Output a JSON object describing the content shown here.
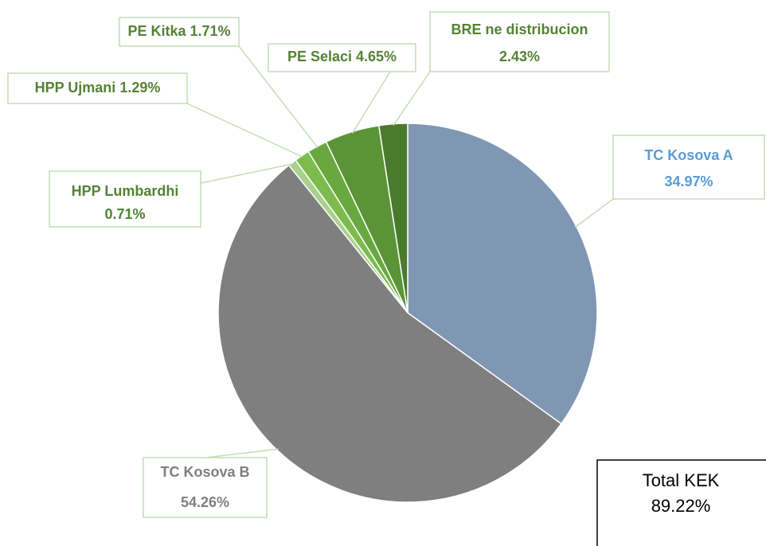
{
  "chart_data": {
    "type": "pie",
    "categories": [
      "TC Kosova A",
      "TC Kosova B",
      "HPP Lumbardhi",
      "HPP Ujmani",
      "PE Kitka",
      "PE Selaci",
      "BRE ne distribucion"
    ],
    "values": [
      34.97,
      54.26,
      0.71,
      1.29,
      1.71,
      4.65,
      2.43
    ],
    "value_labels": [
      "34.97%",
      "54.26%",
      "0.71%",
      "1.29%",
      "1.71%",
      "4.65%",
      "2.43%"
    ],
    "colors": [
      "#8097b3",
      "#7f7f7f",
      "#a9d18e",
      "#7dbb4f",
      "#69a83f",
      "#5a9436",
      "#4a7a2c"
    ],
    "label_colors": [
      "#5b9bd5",
      "#7f7f7f",
      "#548235",
      "#548235",
      "#548235",
      "#548235",
      "#548235"
    ],
    "annotation": "Total KEK",
    "annotation_value": "89.22%"
  }
}
